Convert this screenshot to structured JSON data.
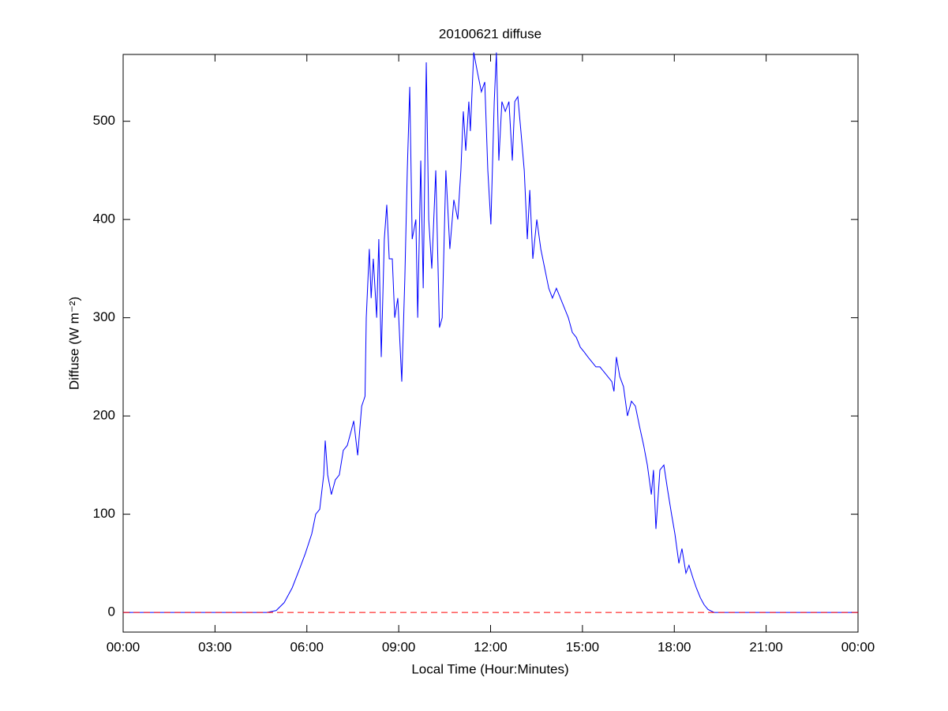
{
  "chart_data": {
    "type": "line",
    "title": "20100621 diffuse",
    "xlabel": "Local Time (Hour:Minutes)",
    "ylabel": "Diffuse (W m⁻²)",
    "x": [
      0,
      4.7,
      5.0,
      5.26,
      5.52,
      5.77,
      5.95,
      6.16,
      6.29,
      6.42,
      6.55,
      6.6,
      6.68,
      6.8,
      6.93,
      7.06,
      7.19,
      7.32,
      7.45,
      7.53,
      7.66,
      7.79,
      7.9,
      7.94,
      8.04,
      8.1,
      8.17,
      8.28,
      8.35,
      8.43,
      8.53,
      8.61,
      8.69,
      8.79,
      8.87,
      8.97,
      9.1,
      9.2,
      9.28,
      9.36,
      9.44,
      9.56,
      9.62,
      9.72,
      9.8,
      9.9,
      9.98,
      10.08,
      10.21,
      10.33,
      10.42,
      10.54,
      10.67,
      10.8,
      10.93,
      11.03,
      11.11,
      11.19,
      11.29,
      11.34,
      11.45,
      11.57,
      11.7,
      11.81,
      11.91,
      12.01,
      12.12,
      12.19,
      12.27,
      12.37,
      12.48,
      12.6,
      12.71,
      12.79,
      12.89,
      12.99,
      13.1,
      13.2,
      13.28,
      13.38,
      13.51,
      13.64,
      13.77,
      13.9,
      14.02,
      14.15,
      14.28,
      14.41,
      14.54,
      14.67,
      14.8,
      14.93,
      15.06,
      15.18,
      15.31,
      15.44,
      15.57,
      15.7,
      15.83,
      15.96,
      16.03,
      16.11,
      16.22,
      16.34,
      16.47,
      16.6,
      16.73,
      16.86,
      17.0,
      17.12,
      17.25,
      17.32,
      17.4,
      17.53,
      17.66,
      17.78,
      17.91,
      18.02,
      18.15,
      18.25,
      18.38,
      18.48,
      18.61,
      18.72,
      18.85,
      18.97,
      19.1,
      19.3,
      24
    ],
    "series": [
      {
        "name": "diffuse",
        "color": "#0000ff",
        "values": [
          0,
          0,
          2,
          10,
          25,
          45,
          60,
          80,
          100,
          105,
          140,
          175,
          140,
          120,
          135,
          140,
          165,
          170,
          185,
          195,
          160,
          210,
          220,
          300,
          370,
          320,
          360,
          300,
          380,
          260,
          380,
          415,
          360,
          360,
          300,
          320,
          235,
          340,
          450,
          535,
          380,
          400,
          300,
          460,
          330,
          560,
          400,
          350,
          450,
          290,
          300,
          450,
          370,
          420,
          400,
          450,
          510,
          470,
          520,
          490,
          570,
          550,
          530,
          540,
          450,
          395,
          520,
          570,
          460,
          520,
          510,
          520,
          460,
          520,
          525,
          490,
          450,
          380,
          430,
          360,
          400,
          370,
          350,
          330,
          320,
          330,
          320,
          310,
          300,
          285,
          280,
          270,
          265,
          260,
          255,
          250,
          250,
          245,
          240,
          235,
          225,
          260,
          240,
          230,
          200,
          215,
          210,
          190,
          170,
          150,
          120,
          145,
          85,
          145,
          150,
          125,
          100,
          80,
          50,
          65,
          40,
          48,
          35,
          25,
          15,
          8,
          3,
          0,
          0
        ]
      }
    ],
    "reference_line": {
      "value": 0,
      "color": "#ff0000"
    },
    "xlim": [
      0,
      24
    ],
    "xticks": [
      {
        "value": 0,
        "label": "00:00"
      },
      {
        "value": 3,
        "label": "03:00"
      },
      {
        "value": 6,
        "label": "06:00"
      },
      {
        "value": 9,
        "label": "09:00"
      },
      {
        "value": 12,
        "label": "12:00"
      },
      {
        "value": 15,
        "label": "15:00"
      },
      {
        "value": 18,
        "label": "18:00"
      },
      {
        "value": 21,
        "label": "21:00"
      },
      {
        "value": 24,
        "label": "00:00"
      }
    ],
    "ylim": [
      -20,
      568
    ],
    "yticks": [
      0,
      100,
      200,
      300,
      400,
      500
    ],
    "grid": false
  }
}
